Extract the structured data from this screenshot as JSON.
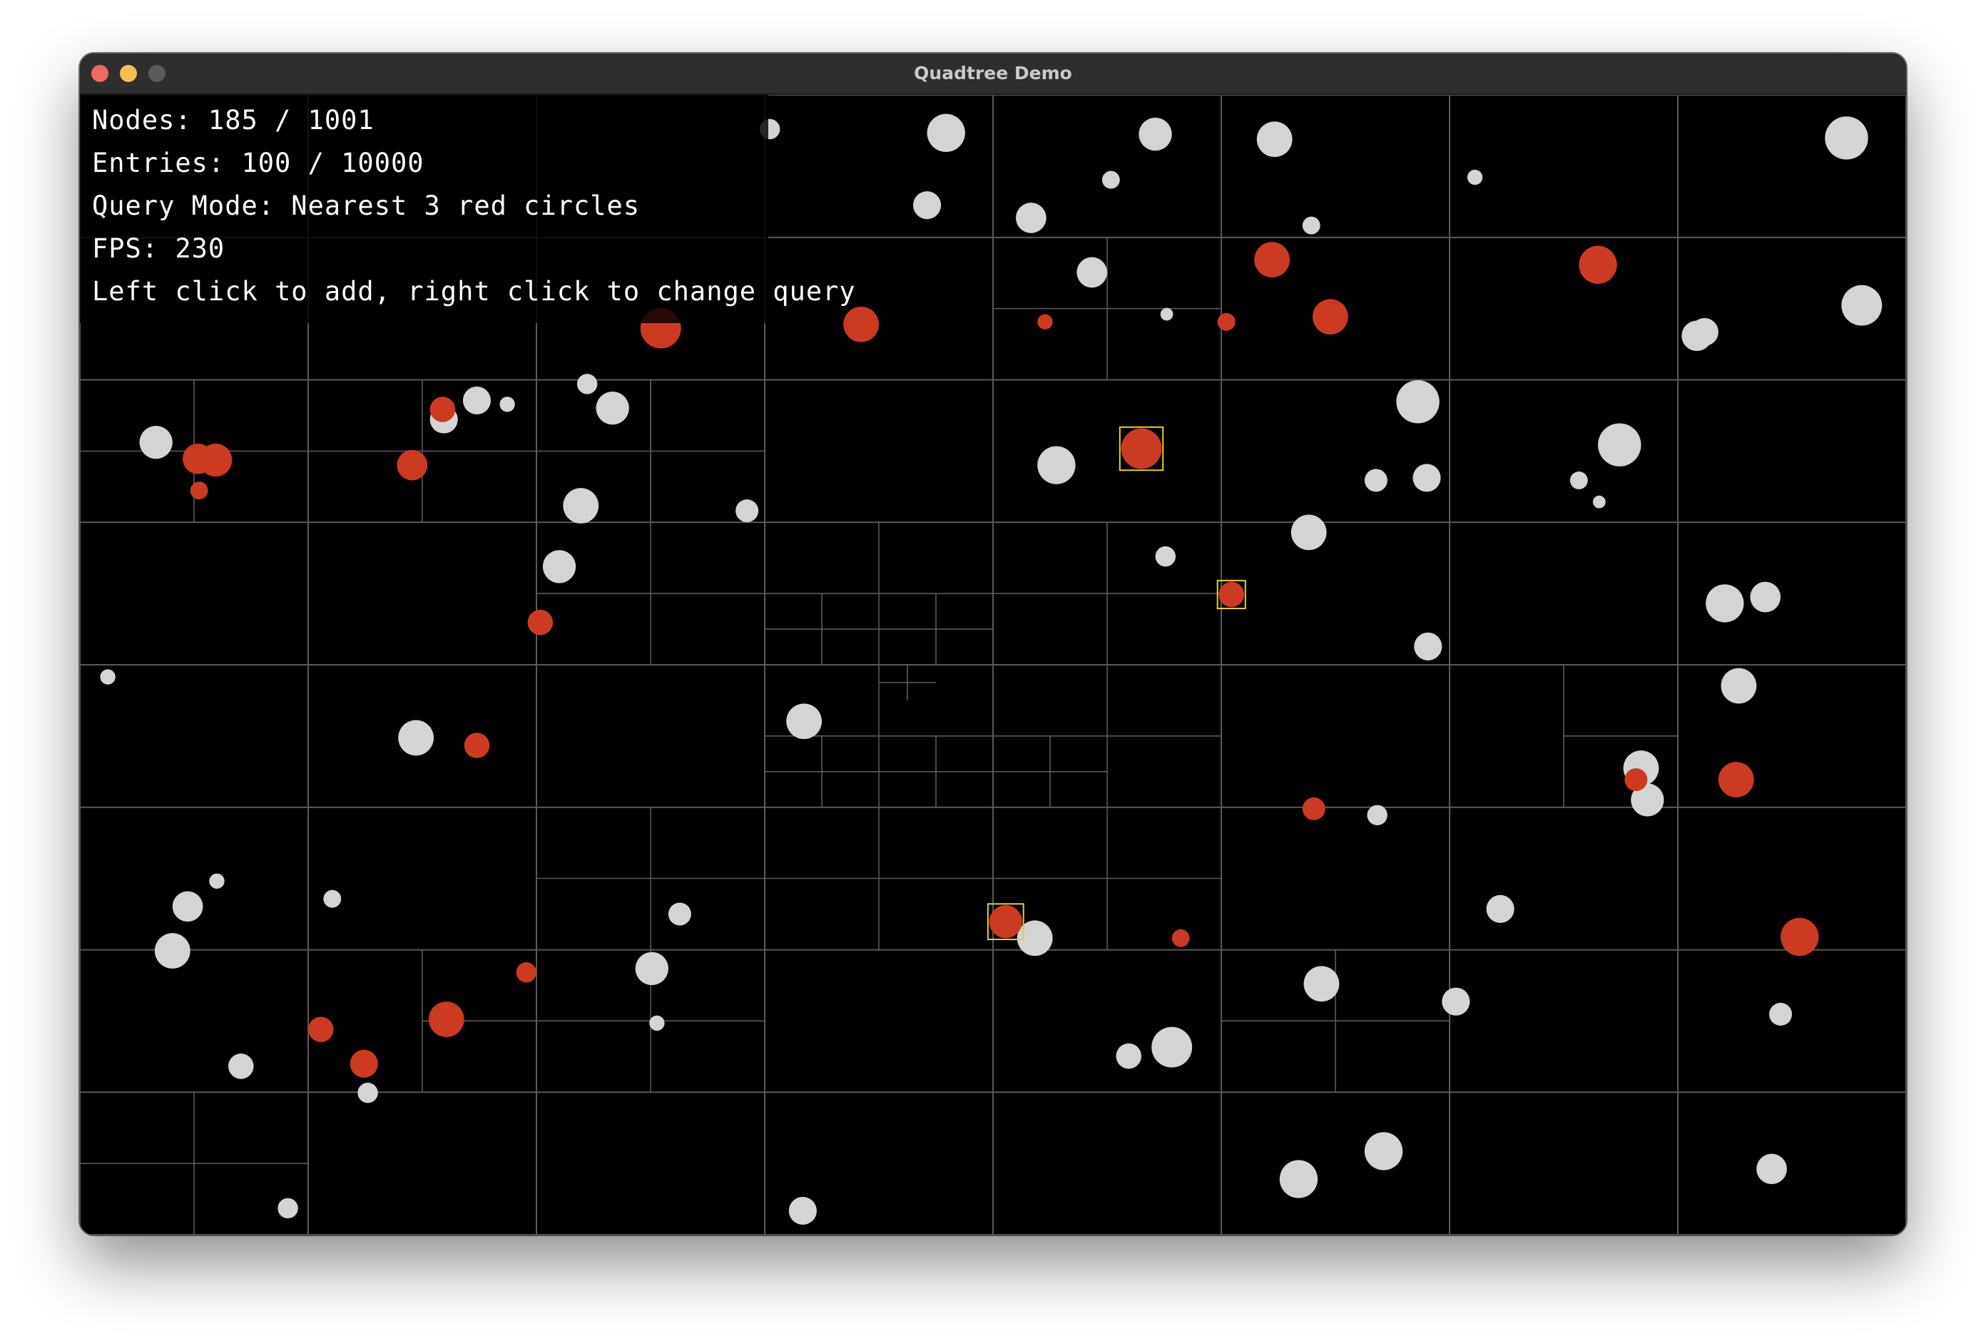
{
  "window": {
    "title": "Quadtree Demo",
    "controls": {
      "close_color": "#ed6a5e",
      "minimize_color": "#f5bf4f",
      "maximize_color": "#5a5a5a"
    }
  },
  "hud": {
    "nodes": "Nodes: 185 / 1001",
    "entries": "Entries: 100 / 10000",
    "query_mode": "Query Mode: Nearest 3 red circles",
    "fps": "FPS: 230",
    "help": "Left click to add, right click to change query"
  },
  "colors": {
    "background": "#000000",
    "grid_line": "#5a5a5a",
    "white_circle": "#d4d4d4",
    "red_circle": "#cc3a22",
    "query_highlight": "#e6d21e"
  }
}
